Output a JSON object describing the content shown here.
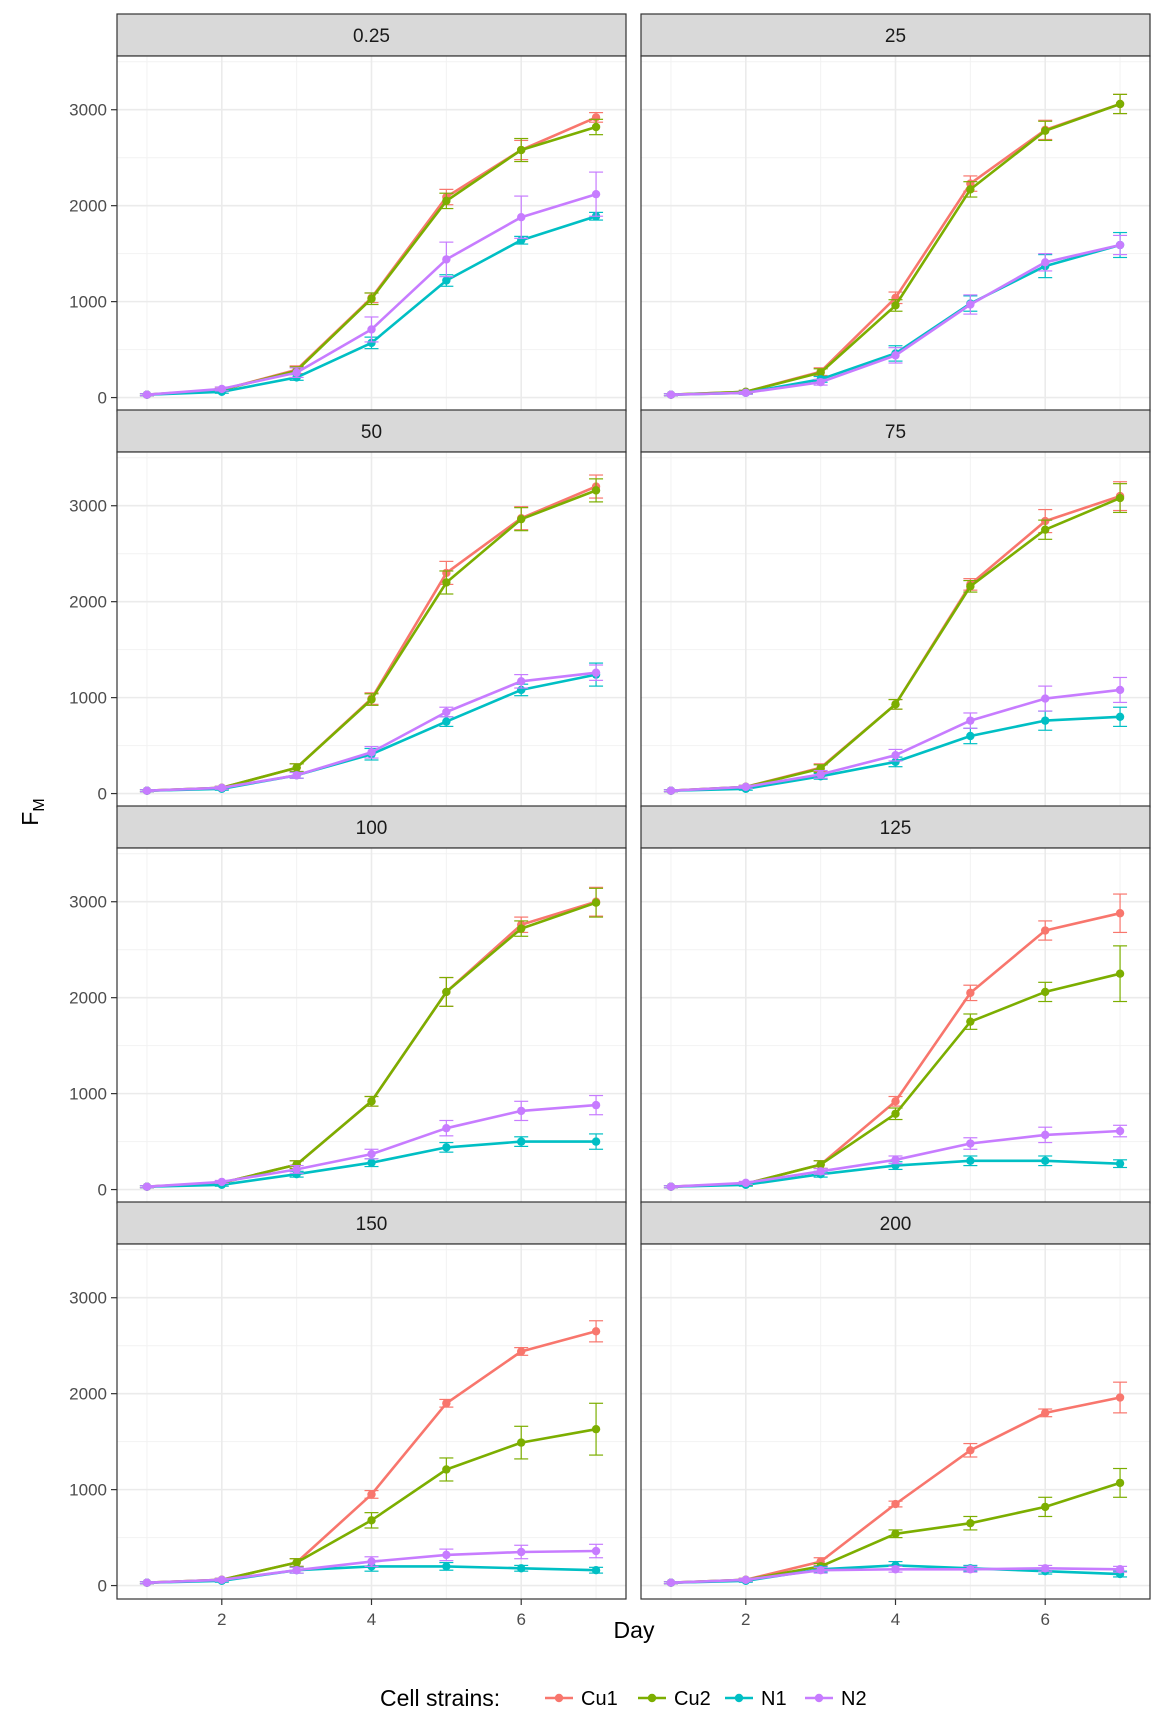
{
  "chart_data": {
    "type": "line",
    "xlabel": "Day",
    "ylabel": "F",
    "ylabel_subscript": "M",
    "xlim": [
      0.6,
      7.4
    ],
    "ylim": [
      -140,
      3560
    ],
    "x_ticks": [
      2,
      4,
      6
    ],
    "y_ticks": [
      0,
      1000,
      2000,
      3000
    ],
    "grid": true,
    "legend": {
      "title": "Cell strains:",
      "position": "bottom",
      "entries": [
        "Cu1",
        "Cu2",
        "N1",
        "N2"
      ]
    },
    "colors": {
      "Cu1": "#F8766D",
      "Cu2": "#7CAE00",
      "N1": "#00BFC4",
      "N2": "#C77CFF"
    },
    "x": [
      1,
      2,
      3,
      4,
      5,
      6,
      7
    ],
    "panels": [
      {
        "title": "0.25",
        "series": [
          {
            "name": "Cu1",
            "values": [
              30,
              80,
              290,
              1040,
              2090,
              2580,
              2920
            ],
            "errors": [
              10,
              15,
              40,
              50,
              80,
              100,
              50
            ]
          },
          {
            "name": "Cu2",
            "values": [
              30,
              80,
              280,
              1030,
              2050,
              2580,
              2820
            ],
            "errors": [
              10,
              15,
              40,
              60,
              80,
              120,
              80
            ]
          },
          {
            "name": "N1",
            "values": [
              30,
              60,
              210,
              570,
              1220,
              1640,
              1890
            ],
            "errors": [
              10,
              15,
              30,
              60,
              60,
              40,
              40
            ]
          },
          {
            "name": "N2",
            "values": [
              30,
              90,
              260,
              710,
              1440,
              1880,
              2120
            ],
            "errors": [
              10,
              20,
              50,
              130,
              180,
              220,
              230
            ]
          }
        ]
      },
      {
        "title": "25",
        "series": [
          {
            "name": "Cu1",
            "values": [
              30,
              60,
              270,
              1040,
              2230,
              2790,
              3060
            ],
            "errors": [
              10,
              15,
              40,
              60,
              80,
              100,
              100
            ]
          },
          {
            "name": "Cu2",
            "values": [
              30,
              60,
              260,
              960,
              2170,
              2780,
              3060
            ],
            "errors": [
              10,
              15,
              40,
              60,
              80,
              100,
              100
            ]
          },
          {
            "name": "N1",
            "values": [
              30,
              50,
              190,
              460,
              980,
              1370,
              1590
            ],
            "errors": [
              10,
              15,
              30,
              80,
              80,
              120,
              130
            ]
          },
          {
            "name": "N2",
            "values": [
              30,
              50,
              160,
              440,
              970,
              1410,
              1590
            ],
            "errors": [
              10,
              15,
              30,
              80,
              100,
              90,
              100
            ]
          }
        ]
      },
      {
        "title": "50",
        "series": [
          {
            "name": "Cu1",
            "values": [
              30,
              60,
              270,
              990,
              2300,
              2870,
              3200
            ],
            "errors": [
              10,
              15,
              40,
              60,
              120,
              120,
              120
            ]
          },
          {
            "name": "Cu2",
            "values": [
              30,
              60,
              270,
              980,
              2200,
              2860,
              3160
            ],
            "errors": [
              10,
              15,
              40,
              60,
              120,
              120,
              120
            ]
          },
          {
            "name": "N1",
            "values": [
              30,
              50,
              190,
              410,
              750,
              1080,
              1240
            ],
            "errors": [
              10,
              15,
              30,
              60,
              50,
              60,
              120
            ]
          },
          {
            "name": "N2",
            "values": [
              30,
              60,
              190,
              430,
              850,
              1170,
              1260
            ],
            "errors": [
              10,
              15,
              30,
              60,
              50,
              70,
              80
            ]
          }
        ]
      },
      {
        "title": "75",
        "series": [
          {
            "name": "Cu1",
            "values": [
              30,
              70,
              270,
              930,
              2180,
              2840,
              3100
            ],
            "errors": [
              10,
              15,
              40,
              50,
              60,
              120,
              150
            ]
          },
          {
            "name": "Cu2",
            "values": [
              30,
              70,
              260,
              930,
              2160,
              2750,
              3080
            ],
            "errors": [
              10,
              15,
              40,
              50,
              60,
              100,
              150
            ]
          },
          {
            "name": "N1",
            "values": [
              30,
              50,
              180,
              330,
              600,
              760,
              800
            ],
            "errors": [
              10,
              15,
              30,
              50,
              80,
              100,
              100
            ]
          },
          {
            "name": "N2",
            "values": [
              30,
              70,
              200,
              400,
              760,
              990,
              1080
            ],
            "errors": [
              10,
              15,
              40,
              60,
              80,
              130,
              130
            ]
          }
        ]
      },
      {
        "title": "100",
        "series": [
          {
            "name": "Cu1",
            "values": [
              30,
              70,
              260,
              920,
              2060,
              2760,
              3000
            ],
            "errors": [
              10,
              15,
              40,
              50,
              150,
              80,
              150
            ]
          },
          {
            "name": "Cu2",
            "values": [
              30,
              70,
              260,
              920,
              2060,
              2720,
              2990
            ],
            "errors": [
              10,
              15,
              40,
              50,
              150,
              80,
              150
            ]
          },
          {
            "name": "N1",
            "values": [
              30,
              50,
              160,
              280,
              440,
              500,
              500
            ],
            "errors": [
              10,
              15,
              30,
              40,
              50,
              50,
              80
            ]
          },
          {
            "name": "N2",
            "values": [
              30,
              80,
              210,
              370,
              640,
              820,
              880
            ],
            "errors": [
              10,
              15,
              40,
              50,
              80,
              100,
              100
            ]
          }
        ]
      },
      {
        "title": "125",
        "series": [
          {
            "name": "Cu1",
            "values": [
              30,
              60,
              260,
              920,
              2050,
              2700,
              2880
            ],
            "errors": [
              10,
              15,
              40,
              50,
              80,
              100,
              200
            ]
          },
          {
            "name": "Cu2",
            "values": [
              30,
              60,
              260,
              790,
              1750,
              2060,
              2250
            ],
            "errors": [
              10,
              15,
              40,
              60,
              80,
              100,
              290
            ]
          },
          {
            "name": "N1",
            "values": [
              30,
              50,
              160,
              250,
              300,
              300,
              270
            ],
            "errors": [
              10,
              15,
              30,
              40,
              50,
              50,
              40
            ]
          },
          {
            "name": "N2",
            "values": [
              30,
              70,
              190,
              310,
              480,
              570,
              610
            ],
            "errors": [
              10,
              15,
              30,
              40,
              60,
              80,
              60
            ]
          }
        ]
      },
      {
        "title": "150",
        "series": [
          {
            "name": "Cu1",
            "values": [
              30,
              60,
              240,
              950,
              1900,
              2440,
              2650
            ],
            "errors": [
              10,
              15,
              40,
              40,
              40,
              40,
              110
            ]
          },
          {
            "name": "Cu2",
            "values": [
              30,
              60,
              240,
              680,
              1210,
              1490,
              1630
            ],
            "errors": [
              10,
              15,
              40,
              80,
              120,
              170,
              270
            ]
          },
          {
            "name": "N1",
            "values": [
              30,
              50,
              160,
              200,
              200,
              180,
              160
            ],
            "errors": [
              10,
              15,
              30,
              50,
              40,
              30,
              30
            ]
          },
          {
            "name": "N2",
            "values": [
              30,
              60,
              160,
              250,
              320,
              350,
              360
            ],
            "errors": [
              10,
              15,
              30,
              50,
              60,
              70,
              70
            ]
          }
        ]
      },
      {
        "title": "200",
        "series": [
          {
            "name": "Cu1",
            "values": [
              30,
              60,
              250,
              850,
              1410,
              1800,
              1960
            ],
            "errors": [
              10,
              15,
              40,
              30,
              70,
              40,
              160
            ]
          },
          {
            "name": "Cu2",
            "values": [
              30,
              60,
              200,
              540,
              650,
              820,
              1070
            ],
            "errors": [
              10,
              15,
              30,
              40,
              70,
              100,
              150
            ]
          },
          {
            "name": "N1",
            "values": [
              30,
              50,
              170,
              210,
              180,
              150,
              120
            ],
            "errors": [
              10,
              15,
              30,
              40,
              30,
              30,
              30
            ]
          },
          {
            "name": "N2",
            "values": [
              30,
              60,
              160,
              170,
              170,
              180,
              170
            ],
            "errors": [
              10,
              15,
              30,
              30,
              30,
              30,
              30
            ]
          }
        ]
      }
    ]
  }
}
